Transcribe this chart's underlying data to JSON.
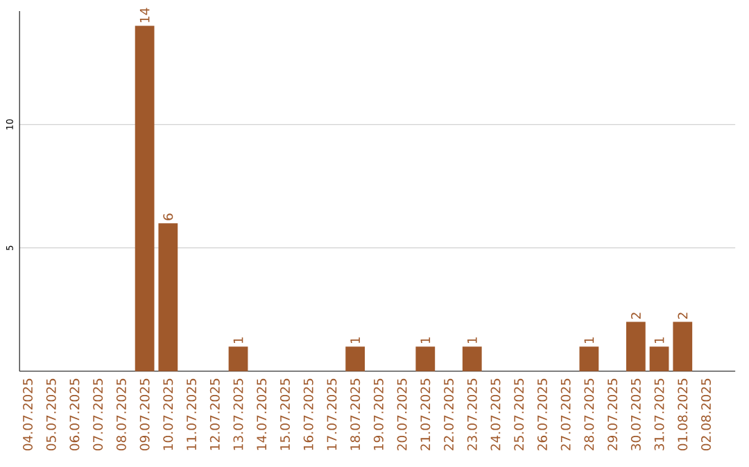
{
  "chart_data": {
    "type": "bar",
    "categories": [
      "04.07.2025",
      "05.07.2025",
      "06.07.2025",
      "07.07.2025",
      "08.07.2025",
      "09.07.2025",
      "10.07.2025",
      "11.07.2025",
      "12.07.2025",
      "13.07.2025",
      "14.07.2025",
      "15.07.2025",
      "16.07.2025",
      "17.07.2025",
      "18.07.2025",
      "19.07.2025",
      "20.07.2025",
      "21.07.2025",
      "22.07.2025",
      "23.07.2025",
      "24.07.2025",
      "25.07.2025",
      "26.07.2025",
      "27.07.2025",
      "28.07.2025",
      "29.07.2025",
      "30.07.2025",
      "31.07.2025",
      "01.08.2025",
      "02.08.2025"
    ],
    "values": [
      0,
      0,
      0,
      0,
      0,
      14,
      6,
      0,
      0,
      1,
      0,
      0,
      0,
      0,
      1,
      0,
      0,
      1,
      0,
      1,
      0,
      0,
      0,
      0,
      1,
      0,
      2,
      1,
      2,
      0
    ],
    "value_labels": [
      null,
      null,
      null,
      null,
      null,
      "14",
      "6",
      null,
      null,
      "1",
      null,
      null,
      null,
      null,
      "1",
      null,
      null,
      "1",
      null,
      "1",
      null,
      null,
      null,
      null,
      "1",
      null,
      "2",
      "1",
      "2",
      null
    ],
    "color": "#a0592b",
    "ylim": [
      0,
      14.6
    ],
    "yticks": [
      5,
      10
    ],
    "grid": "y"
  }
}
